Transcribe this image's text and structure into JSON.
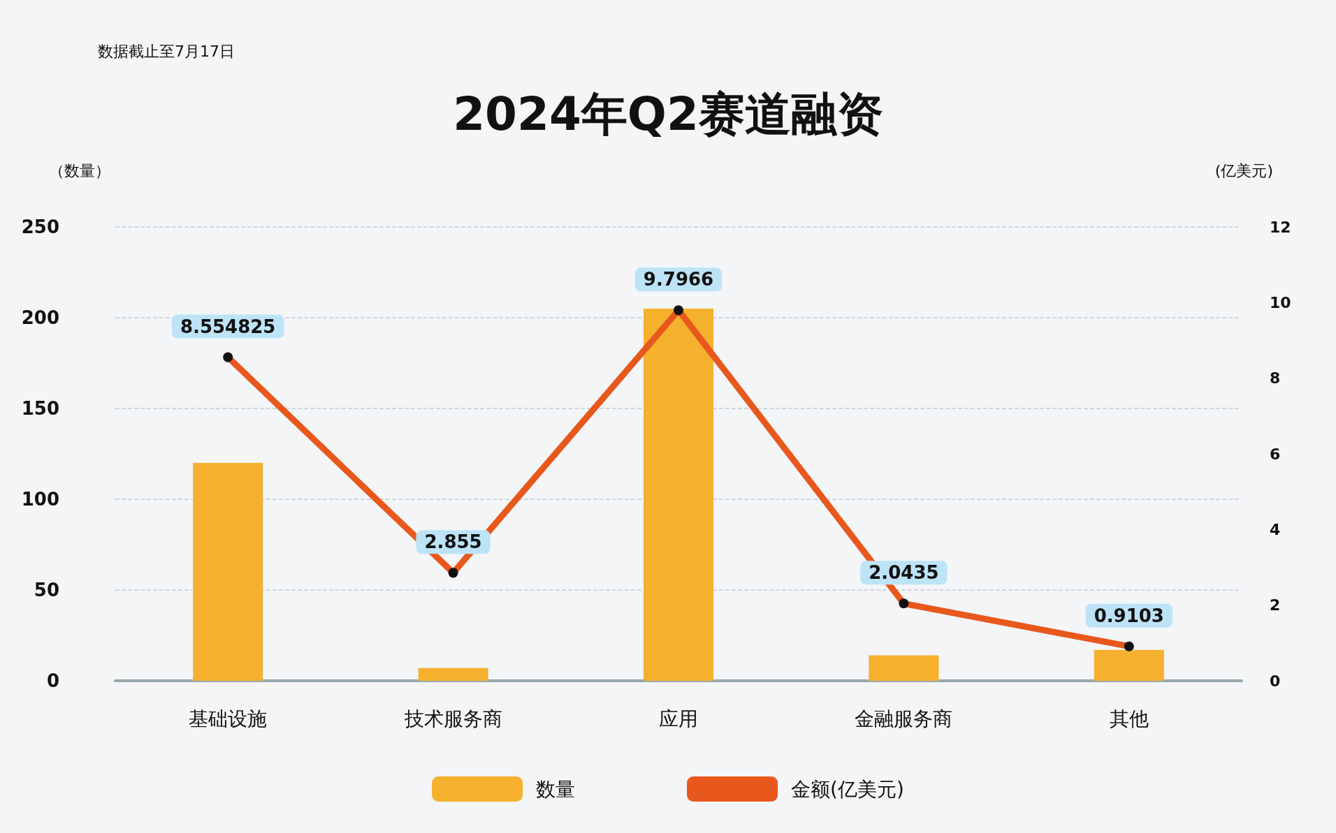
{
  "chart_data": {
    "type": "bar",
    "title": "2024年Q2赛道融资",
    "ylabel": "（数量）",
    "y2label": "(亿美元)",
    "annotations": [
      "数据截止至7月17日"
    ],
    "categories": [
      "基础设施",
      "技术服务商",
      "应用",
      "金融服务商",
      "其他"
    ],
    "series": [
      {
        "name": "数量",
        "color": "#f5b02e",
        "values": [
          120,
          7,
          205,
          14,
          17
        ]
      },
      {
        "name": "金额(亿美元)",
        "type": "line",
        "axis": "y2",
        "color": "#e8581c",
        "values": [
          8.554825,
          2.855,
          9.7966,
          2.0435,
          0.9103
        ],
        "data_labels": true,
        "marker": "circle"
      }
    ],
    "ylim": [
      0,
      250
    ],
    "yticks": [
      0,
      50,
      100,
      150,
      200,
      250
    ],
    "y2lim": [
      0,
      12
    ],
    "y2ticks": [
      0,
      2,
      4,
      6,
      8,
      10,
      12
    ],
    "grid": "y",
    "legend": "bottom"
  }
}
